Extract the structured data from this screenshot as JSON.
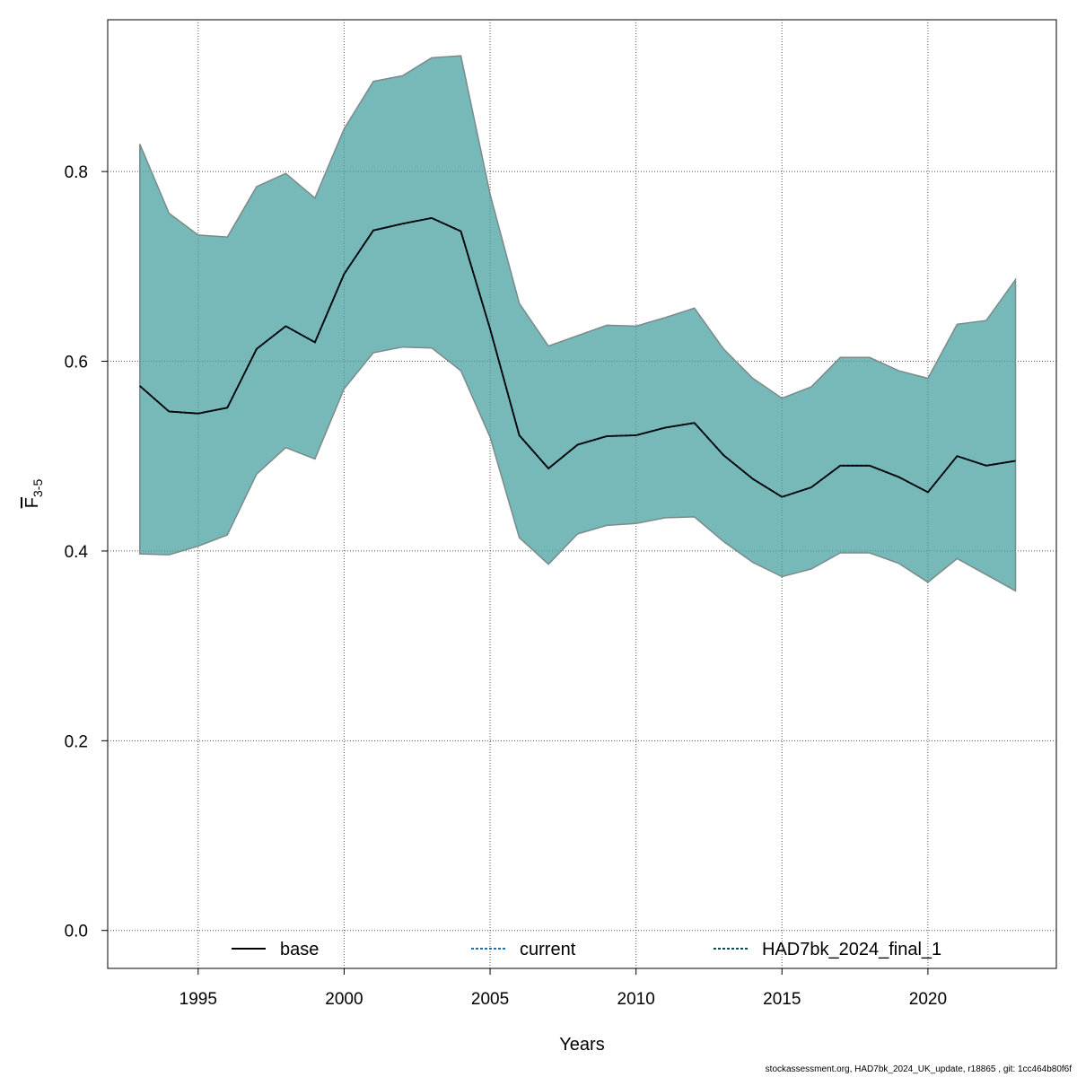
{
  "chart_data": {
    "type": "area",
    "xlabel": "Years",
    "ylabel": "F3-5",
    "xlim": [
      1991.9,
      2024.4
    ],
    "ylim": [
      -0.04,
      0.96
    ],
    "x_ticks": [
      1995,
      2000,
      2005,
      2010,
      2015,
      2020
    ],
    "y_ticks": [
      0.0,
      0.2,
      0.4,
      0.6,
      0.8
    ],
    "grid": true,
    "legend_position": "bottom",
    "colors": {
      "band_fill": "#4aa2a2",
      "band_edge": "#7a8a8a",
      "line": "#000000",
      "current_line": "#1f6fb0",
      "final_line": "#0b4f4f"
    },
    "years": [
      1993,
      1994,
      1995,
      1996,
      1997,
      1998,
      1999,
      2000,
      2001,
      2002,
      2003,
      2004,
      2005,
      2006,
      2007,
      2008,
      2009,
      2010,
      2011,
      2012,
      2013,
      2014,
      2015,
      2016,
      2017,
      2018,
      2019,
      2020,
      2021,
      2022,
      2023
    ],
    "series": [
      {
        "name": "base",
        "style": "solid",
        "values": [
          0.574,
          0.547,
          0.545,
          0.551,
          0.613,
          0.637,
          0.62,
          0.692,
          0.738,
          0.745,
          0.751,
          0.737,
          0.634,
          0.522,
          0.487,
          0.512,
          0.521,
          0.522,
          0.53,
          0.535,
          0.501,
          0.476,
          0.457,
          0.467,
          0.49,
          0.49,
          0.478,
          0.462,
          0.5,
          0.49,
          0.495
        ],
        "lower": [
          0.397,
          0.396,
          0.405,
          0.417,
          0.481,
          0.509,
          0.497,
          0.571,
          0.609,
          0.615,
          0.614,
          0.59,
          0.52,
          0.414,
          0.386,
          0.418,
          0.427,
          0.429,
          0.435,
          0.436,
          0.41,
          0.388,
          0.373,
          0.381,
          0.398,
          0.398,
          0.387,
          0.367,
          0.392,
          0.375,
          0.358
        ],
        "upper": [
          0.829,
          0.756,
          0.733,
          0.731,
          0.784,
          0.798,
          0.772,
          0.845,
          0.895,
          0.901,
          0.92,
          0.922,
          0.776,
          0.661,
          0.616,
          0.627,
          0.638,
          0.637,
          0.646,
          0.656,
          0.613,
          0.582,
          0.561,
          0.573,
          0.604,
          0.604,
          0.59,
          0.582,
          0.639,
          0.643,
          0.686
        ]
      },
      {
        "name": "current",
        "style": "dashed",
        "values": [
          0.574,
          0.547,
          0.545,
          0.551,
          0.613,
          0.637,
          0.62,
          0.692,
          0.738,
          0.745,
          0.751,
          0.737,
          0.634,
          0.522,
          0.487,
          0.512,
          0.521,
          0.522,
          0.53,
          0.535,
          0.501,
          0.476,
          0.457,
          0.467,
          0.49,
          0.49,
          0.478,
          0.462,
          0.5,
          0.49,
          0.495
        ]
      },
      {
        "name": "HAD7bk_2024_final_1",
        "style": "dashed",
        "values": [
          0.574,
          0.547,
          0.545,
          0.551,
          0.613,
          0.637,
          0.62,
          0.692,
          0.738,
          0.745,
          0.751,
          0.737,
          0.634,
          0.522,
          0.487,
          0.512,
          0.521,
          0.522,
          0.53,
          0.535,
          0.501,
          0.476,
          0.457,
          0.467,
          0.49,
          0.49,
          0.478,
          0.462,
          0.5,
          0.49,
          0.495
        ]
      }
    ]
  },
  "footer_text": "stockassessment.org, HAD7bk_2024_UK_update, r18865 , git: 1cc464b80f6f"
}
